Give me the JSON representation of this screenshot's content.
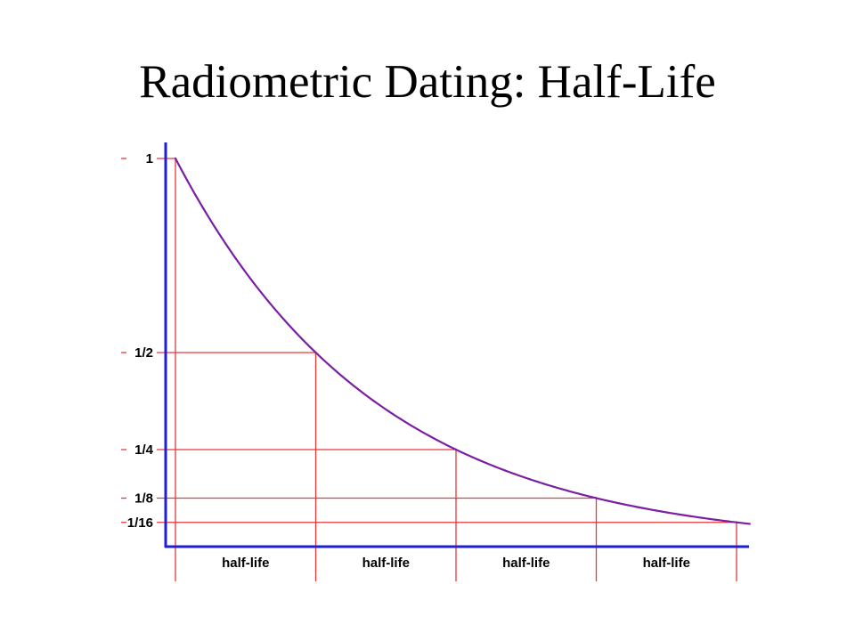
{
  "slide": {
    "title": "Radiometric Dating: Half-Life"
  },
  "colors": {
    "axis": "#1f1fd4",
    "guide": "#e8383a",
    "curve": "#7b1fa2",
    "text": "#000000"
  },
  "chart_data": {
    "type": "line",
    "title": "",
    "xlabel": "",
    "ylabel": "",
    "grid": false,
    "legend": "none",
    "x_unit": "half-lives",
    "xlim": [
      0,
      4.1
    ],
    "ylim": [
      0,
      1
    ],
    "y_ticks": [
      {
        "value": 1,
        "label": "1"
      },
      {
        "value": 0.5,
        "label": "1/2"
      },
      {
        "value": 0.25,
        "label": "1/4"
      },
      {
        "value": 0.125,
        "label": "1/8"
      },
      {
        "value": 0.0625,
        "label": "1/16"
      }
    ],
    "period_labels": [
      "half-life",
      "half-life",
      "half-life",
      "half-life"
    ],
    "series": [
      {
        "x": [
          0,
          1,
          2,
          3,
          4
        ],
        "values": [
          1,
          0.5,
          0.25,
          0.125,
          0.0625
        ]
      }
    ]
  }
}
